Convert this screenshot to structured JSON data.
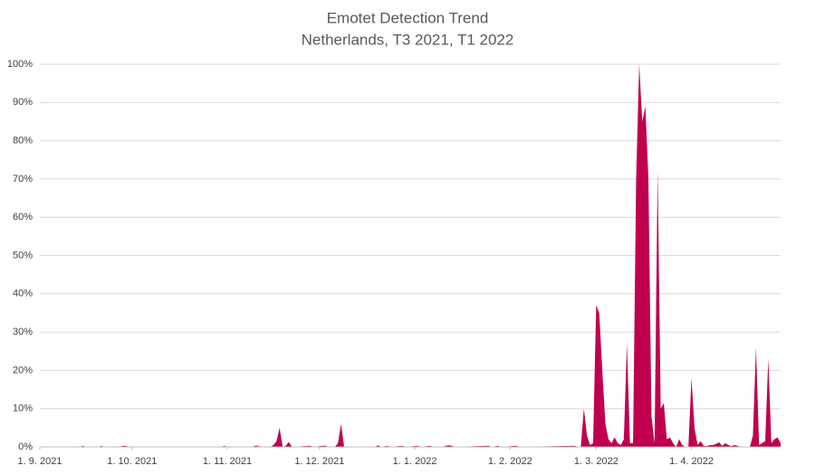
{
  "chart_data": {
    "type": "area",
    "title": "Emotet Detection Trend",
    "subtitle": "Netherlands, T3 2021, T1 2022",
    "color": "#c0004e",
    "grid": true,
    "xlim": [
      "2021-09-01",
      "2022-04-30"
    ],
    "xticks": [
      {
        "value": "2021-09-01",
        "label": "1. 9. 2021"
      },
      {
        "value": "2021-10-01",
        "label": "1. 10. 2021"
      },
      {
        "value": "2021-11-01",
        "label": "1. 11. 2021"
      },
      {
        "value": "2021-12-01",
        "label": "1. 12. 2021"
      },
      {
        "value": "2022-01-01",
        "label": "1. 1. 2022"
      },
      {
        "value": "2022-02-01",
        "label": "1. 2. 2022"
      },
      {
        "value": "2022-03-01",
        "label": "1. 3. 2022"
      },
      {
        "value": "2022-04-01",
        "label": "1. 4. 2022"
      }
    ],
    "ylim": [
      0,
      100
    ],
    "yticks": [
      {
        "value": 0,
        "label": "0%"
      },
      {
        "value": 10,
        "label": "10%"
      },
      {
        "value": 20,
        "label": "20%"
      },
      {
        "value": 30,
        "label": "30%"
      },
      {
        "value": 40,
        "label": "40%"
      },
      {
        "value": 50,
        "label": "50%"
      },
      {
        "value": 60,
        "label": "60%"
      },
      {
        "value": 70,
        "label": "70%"
      },
      {
        "value": 80,
        "label": "80%"
      },
      {
        "value": 90,
        "label": "90%"
      },
      {
        "value": 100,
        "label": "100%"
      }
    ],
    "x": [
      "2021-09-01",
      "2021-09-14",
      "2021-09-15",
      "2021-09-16",
      "2021-09-20",
      "2021-09-21",
      "2021-09-22",
      "2021-09-27",
      "2021-09-28",
      "2021-09-29",
      "2021-09-30",
      "2021-10-30",
      "2021-10-31",
      "2021-11-01",
      "2021-11-09",
      "2021-11-10",
      "2021-11-11",
      "2021-11-12",
      "2021-11-15",
      "2021-11-16",
      "2021-11-17",
      "2021-11-18",
      "2021-11-19",
      "2021-11-20",
      "2021-11-21",
      "2021-11-22",
      "2021-11-28",
      "2021-11-29",
      "2021-12-02",
      "2021-12-03",
      "2021-12-04",
      "2021-12-06",
      "2021-12-07",
      "2021-12-08",
      "2021-12-09",
      "2021-12-19",
      "2021-12-20",
      "2021-12-21",
      "2021-12-23",
      "2021-12-24",
      "2021-12-28",
      "2021-12-29",
      "2022-01-02",
      "2022-01-03",
      "2022-01-06",
      "2022-01-07",
      "2022-01-10",
      "2022-01-11",
      "2022-01-12",
      "2022-01-13",
      "2022-01-14",
      "2022-01-25",
      "2022-01-26",
      "2022-01-28",
      "2022-01-29",
      "2022-02-03",
      "2022-02-04",
      "2022-02-22",
      "2022-02-23",
      "2022-02-24",
      "2022-02-25",
      "2022-02-26",
      "2022-02-27",
      "2022-02-28",
      "2022-03-01",
      "2022-03-02",
      "2022-03-03",
      "2022-03-04",
      "2022-03-05",
      "2022-03-06",
      "2022-03-07",
      "2022-03-08",
      "2022-03-09",
      "2022-03-10",
      "2022-03-11",
      "2022-03-12",
      "2022-03-13",
      "2022-03-14",
      "2022-03-15",
      "2022-03-16",
      "2022-03-17",
      "2022-03-18",
      "2022-03-19",
      "2022-03-20",
      "2022-03-21",
      "2022-03-22",
      "2022-03-23",
      "2022-03-24",
      "2022-03-25",
      "2022-03-26",
      "2022-03-27",
      "2022-03-28",
      "2022-03-29",
      "2022-03-30",
      "2022-03-31",
      "2022-04-01",
      "2022-04-02",
      "2022-04-03",
      "2022-04-04",
      "2022-04-05",
      "2022-04-06",
      "2022-04-07",
      "2022-04-08",
      "2022-04-09",
      "2022-04-10",
      "2022-04-11",
      "2022-04-12",
      "2022-04-13",
      "2022-04-14",
      "2022-04-15",
      "2022-04-16",
      "2022-04-17",
      "2022-04-18",
      "2022-04-19",
      "2022-04-20",
      "2022-04-21",
      "2022-04-22",
      "2022-04-23",
      "2022-04-24",
      "2022-04-25",
      "2022-04-26",
      "2022-04-27",
      "2022-04-28",
      "2022-04-29",
      "2022-04-30"
    ],
    "values": [
      0,
      0,
      0.3,
      0,
      0,
      0.3,
      0,
      0,
      0.3,
      0.3,
      0,
      0,
      0.3,
      0,
      0,
      0.3,
      0.3,
      0,
      0,
      0.5,
      1.5,
      5,
      0,
      0.3,
      1.3,
      0,
      0.3,
      0,
      0.3,
      0.3,
      0,
      0,
      1,
      6,
      0,
      0,
      0.4,
      0,
      0.3,
      0,
      0.3,
      0,
      0.3,
      0,
      0.3,
      0,
      0,
      0.3,
      0.4,
      0.3,
      0,
      0.3,
      0,
      0.3,
      0,
      0.3,
      0,
      0.3,
      0,
      0,
      10,
      3,
      0.5,
      1,
      37,
      35,
      20,
      6,
      2,
      1,
      2.5,
      1,
      0.5,
      2,
      27,
      1,
      1,
      70,
      100,
      85,
      89,
      70,
      8,
      1,
      72,
      10,
      11.5,
      2,
      2.5,
      1,
      0,
      2,
      0.5,
      0,
      0,
      18,
      5,
      0.5,
      1.5,
      0.3,
      0.2,
      0.5,
      0.5,
      0.8,
      1.2,
      0.3,
      1,
      0.5,
      0.2,
      0.5,
      0.3,
      0,
      0,
      0,
      0,
      3,
      26,
      0.5,
      1,
      1.5,
      23,
      1,
      2,
      2.5,
      1
    ]
  }
}
